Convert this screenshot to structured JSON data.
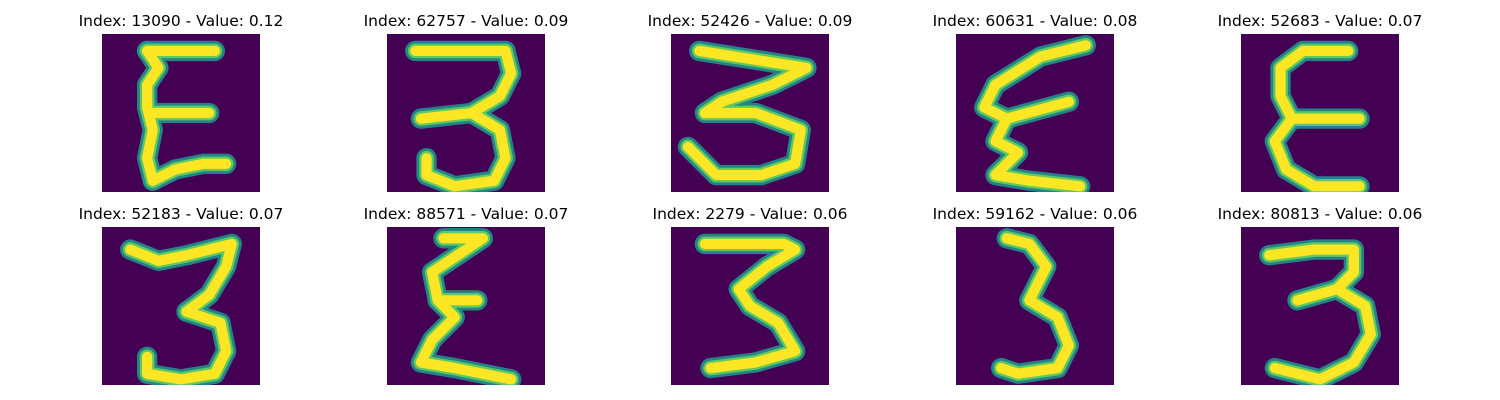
{
  "figure": {
    "colormap": "viridis",
    "background_color": "#440154",
    "foreground_color": "#fde725",
    "panels": [
      {
        "title": "Index: 13090 - Value: 0.12",
        "image": "digit-3-mirrored-icon",
        "strokes": [
          [
            [
              8,
              3
            ],
            [
              20,
              3
            ]
          ],
          [
            [
              8,
              3
            ],
            [
              10,
              6
            ],
            [
              8,
              9
            ],
            [
              8,
              13
            ],
            [
              9,
              17
            ],
            [
              8,
              22
            ],
            [
              9,
              26
            ]
          ],
          [
            [
              9,
              14
            ],
            [
              19,
              14
            ]
          ],
          [
            [
              9,
              26
            ],
            [
              13,
              24
            ],
            [
              18,
              23
            ],
            [
              22,
              23
            ]
          ]
        ]
      },
      {
        "title": "Index: 62757 - Value: 0.09",
        "image": "digit-3-icon",
        "strokes": [
          [
            [
              5,
              3
            ],
            [
              21,
              3
            ],
            [
              22,
              7
            ],
            [
              20,
              11
            ],
            [
              15,
              14
            ],
            [
              6,
              15
            ]
          ],
          [
            [
              15,
              14
            ],
            [
              20,
              17
            ],
            [
              21,
              22
            ],
            [
              19,
              26
            ],
            [
              12,
              27
            ],
            [
              7,
              25
            ],
            [
              7,
              22
            ]
          ]
        ]
      },
      {
        "title": "Index: 52426 - Value: 0.09",
        "image": "digit-3-icon",
        "strokes": [
          [
            [
              5,
              3
            ],
            [
              24,
              6
            ],
            [
              18,
              9
            ],
            [
              9,
              12
            ],
            [
              6,
              14
            ],
            [
              15,
              14
            ],
            [
              23,
              17
            ],
            [
              22,
              23
            ],
            [
              16,
              25
            ],
            [
              8,
              25
            ],
            [
              3,
              20
            ]
          ]
        ]
      },
      {
        "title": "Index: 60631 - Value: 0.08",
        "image": "digit-3-mirrored-icon",
        "strokes": [
          [
            [
              23,
              2
            ],
            [
              15,
              4
            ],
            [
              7,
              9
            ],
            [
              5,
              13
            ],
            [
              9,
              15
            ],
            [
              20,
              12
            ]
          ],
          [
            [
              9,
              15
            ],
            [
              7,
              19
            ],
            [
              11,
              21
            ],
            [
              7,
              25
            ],
            [
              13,
              26
            ],
            [
              22,
              27
            ]
          ]
        ]
      },
      {
        "title": "Index: 52683 - Value: 0.07",
        "image": "digit-3-mirrored-icon",
        "strokes": [
          [
            [
              19,
              3
            ],
            [
              11,
              3
            ],
            [
              7,
              6
            ],
            [
              7,
              11
            ],
            [
              9,
              15
            ],
            [
              6,
              19
            ],
            [
              8,
              24
            ],
            [
              13,
              27
            ],
            [
              21,
              27
            ]
          ],
          [
            [
              9,
              15
            ],
            [
              21,
              15
            ]
          ]
        ]
      },
      {
        "title": "Index: 52183 - Value: 0.07",
        "image": "digit-3-icon",
        "strokes": [
          [
            [
              5,
              4
            ],
            [
              10,
              6
            ],
            [
              15,
              5
            ],
            [
              23,
              3
            ],
            [
              22,
              7
            ],
            [
              19,
              12
            ],
            [
              15,
              15
            ]
          ],
          [
            [
              15,
              15
            ],
            [
              21,
              17
            ],
            [
              22,
              22
            ],
            [
              20,
              26
            ],
            [
              14,
              27
            ],
            [
              8,
              26
            ],
            [
              8,
              23
            ]
          ]
        ]
      },
      {
        "title": "Index: 88571 - Value: 0.07",
        "image": "digit-3-mirrored-icon",
        "strokes": [
          [
            [
              10,
              2
            ],
            [
              17,
              2
            ],
            [
              14,
              4
            ],
            [
              8,
              8
            ],
            [
              9,
              13
            ],
            [
              16,
              13
            ]
          ],
          [
            [
              9,
              13
            ],
            [
              12,
              16
            ],
            [
              8,
              20
            ],
            [
              6,
              24
            ],
            [
              12,
              25
            ],
            [
              22,
              27
            ]
          ]
        ]
      },
      {
        "title": "Index: 2279 - Value: 0.06",
        "image": "digit-3-icon",
        "strokes": [
          [
            [
              6,
              3
            ],
            [
              20,
              3
            ],
            [
              22,
              4
            ],
            [
              17,
              7
            ],
            [
              12,
              11
            ],
            [
              14,
              14
            ],
            [
              19,
              17
            ],
            [
              22,
              22
            ],
            [
              15,
              24
            ],
            [
              7,
              25
            ]
          ]
        ]
      },
      {
        "title": "Index: 59162 - Value: 0.06",
        "image": "digit-3-icon",
        "strokes": [
          [
            [
              9,
              2
            ],
            [
              13,
              3
            ],
            [
              16,
              7
            ],
            [
              14,
              11
            ],
            [
              13,
              13
            ],
            [
              18,
              16
            ],
            [
              20,
              21
            ],
            [
              18,
              25
            ],
            [
              11,
              26
            ],
            [
              8,
              25
            ]
          ]
        ]
      },
      {
        "title": "Index: 80813 - Value: 0.06",
        "image": "digit-3-icon",
        "strokes": [
          [
            [
              5,
              5
            ],
            [
              13,
              4
            ],
            [
              20,
              4
            ],
            [
              20,
              8
            ],
            [
              17,
              11
            ],
            [
              10,
              13
            ]
          ],
          [
            [
              17,
              11
            ],
            [
              22,
              14
            ],
            [
              23,
              19
            ],
            [
              20,
              24
            ],
            [
              14,
              27
            ],
            [
              6,
              25
            ]
          ]
        ]
      }
    ]
  }
}
